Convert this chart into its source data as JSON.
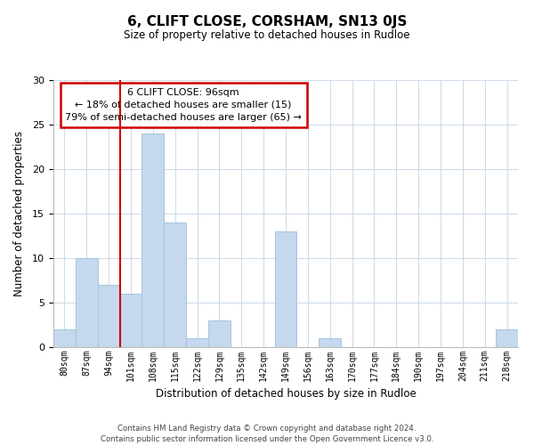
{
  "title": "6, CLIFT CLOSE, CORSHAM, SN13 0JS",
  "subtitle": "Size of property relative to detached houses in Rudloe",
  "xlabel": "Distribution of detached houses by size in Rudloe",
  "ylabel": "Number of detached properties",
  "bar_color": "#c5d8ed",
  "bar_edge_color": "#a8c4de",
  "categories": [
    "80sqm",
    "87sqm",
    "94sqm",
    "101sqm",
    "108sqm",
    "115sqm",
    "122sqm",
    "129sqm",
    "135sqm",
    "142sqm",
    "149sqm",
    "156sqm",
    "163sqm",
    "170sqm",
    "177sqm",
    "184sqm",
    "190sqm",
    "197sqm",
    "204sqm",
    "211sqm",
    "218sqm"
  ],
  "values": [
    2,
    10,
    7,
    6,
    24,
    14,
    1,
    3,
    0,
    0,
    13,
    0,
    1,
    0,
    0,
    0,
    0,
    0,
    0,
    0,
    2
  ],
  "ylim": [
    0,
    30
  ],
  "yticks": [
    0,
    5,
    10,
    15,
    20,
    25,
    30
  ],
  "vline_x_index": 2,
  "vline_color": "#cc0000",
  "annotation_title": "6 CLIFT CLOSE: 96sqm",
  "annotation_line1": "← 18% of detached houses are smaller (15)",
  "annotation_line2": "79% of semi-detached houses are larger (65) →",
  "annotation_box_color": "#ffffff",
  "annotation_box_edge": "#cc0000",
  "footer_line1": "Contains HM Land Registry data © Crown copyright and database right 2024.",
  "footer_line2": "Contains public sector information licensed under the Open Government Licence v3.0.",
  "bg_color": "#ffffff",
  "grid_color": "#d0dcea"
}
